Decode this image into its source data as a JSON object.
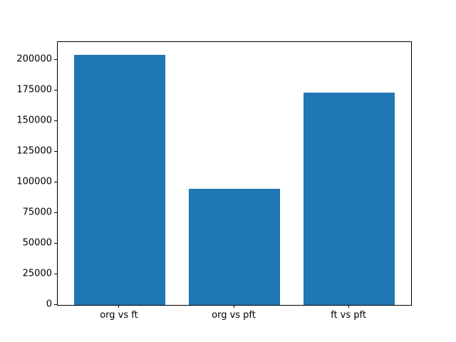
{
  "chart_data": {
    "type": "bar",
    "categories": [
      "org vs ft",
      "org vs pft",
      "ft vs pft"
    ],
    "values": [
      204500,
      95000,
      173200
    ],
    "title": "",
    "xlabel": "",
    "ylabel": "",
    "yticks": [
      0,
      25000,
      50000,
      75000,
      100000,
      125000,
      150000,
      175000,
      200000
    ],
    "ylim": [
      0,
      214725
    ],
    "xlim": [
      -0.54,
      2.54
    ],
    "bar_width": 0.8,
    "bar_color": "#1f77b4",
    "axis_color": "#000000",
    "background_color": "#ffffff",
    "grid": false,
    "legend": null
  }
}
